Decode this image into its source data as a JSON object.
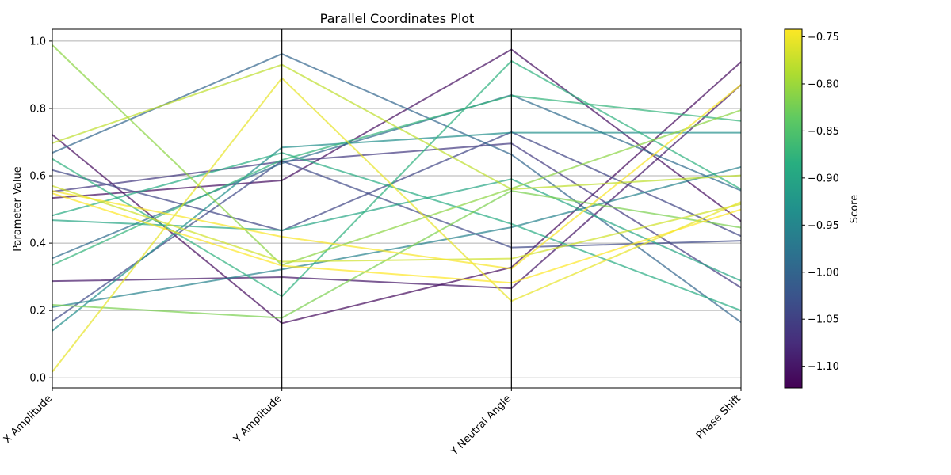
{
  "chart_data": {
    "type": "parallel-coordinates",
    "title": "Parallel Coordinates Plot",
    "ylabel": "Parameter Value",
    "axes": [
      "X Amplitude",
      "Y Amplitude",
      "Y Neutral Angle",
      "Phase Shift"
    ],
    "ylim": [
      -0.03,
      1.035
    ],
    "yticks": [
      0.0,
      0.2,
      0.4,
      0.6,
      0.8,
      1.0
    ],
    "grid": true,
    "colormap": "viridis",
    "colorbar": {
      "label": "Score",
      "range": [
        -1.123,
        -0.742
      ],
      "ticks": [
        -0.75,
        -0.8,
        -0.85,
        -0.9,
        -0.95,
        -1.0,
        -1.05,
        -1.1
      ]
    },
    "series": [
      {
        "score": -1.113,
        "values": [
          0.722,
          0.162,
          0.328,
          0.938
        ]
      },
      {
        "score": -1.11,
        "values": [
          0.534,
          0.586,
          0.975,
          0.465
        ]
      },
      {
        "score": -1.1,
        "values": [
          0.287,
          0.299,
          0.266,
          0.87
        ]
      },
      {
        "score": -1.06,
        "values": [
          0.553,
          0.642,
          0.696,
          0.268
        ]
      },
      {
        "score": -1.045,
        "values": [
          0.617,
          0.437,
          0.73,
          0.421
        ]
      },
      {
        "score": -1.04,
        "values": [
          0.168,
          0.644,
          0.387,
          0.407
        ]
      },
      {
        "score": -1.0,
        "values": [
          0.668,
          0.962,
          0.663,
          0.165
        ]
      },
      {
        "score": -0.99,
        "values": [
          0.355,
          0.637,
          0.84,
          0.556
        ]
      },
      {
        "score": -0.955,
        "values": [
          0.21,
          0.322,
          0.447,
          0.626
        ]
      },
      {
        "score": -0.935,
        "values": [
          0.14,
          0.684,
          0.728,
          0.728
        ]
      },
      {
        "score": -0.9,
        "values": [
          0.468,
          0.438,
          0.59,
          0.288
        ]
      },
      {
        "score": -0.89,
        "values": [
          0.482,
          0.668,
          0.457,
          0.2
        ]
      },
      {
        "score": -0.88,
        "values": [
          0.65,
          0.242,
          0.941,
          0.56
        ]
      },
      {
        "score": -0.875,
        "values": [
          0.335,
          0.647,
          0.838,
          0.763
        ]
      },
      {
        "score": -0.82,
        "values": [
          0.217,
          0.178,
          0.555,
          0.446
        ]
      },
      {
        "score": -0.81,
        "values": [
          0.988,
          0.335,
          0.562,
          0.795
        ]
      },
      {
        "score": -0.78,
        "values": [
          0.697,
          0.93,
          0.56,
          0.601
        ]
      },
      {
        "score": -0.77,
        "values": [
          0.57,
          0.345,
          0.354,
          0.516
        ]
      },
      {
        "score": -0.755,
        "values": [
          0.018,
          0.89,
          0.228,
          0.522
        ]
      },
      {
        "score": -0.745,
        "values": [
          0.555,
          0.419,
          0.324,
          0.87
        ]
      },
      {
        "score": -0.742,
        "values": [
          0.548,
          0.333,
          0.282,
          0.5
        ]
      }
    ]
  }
}
